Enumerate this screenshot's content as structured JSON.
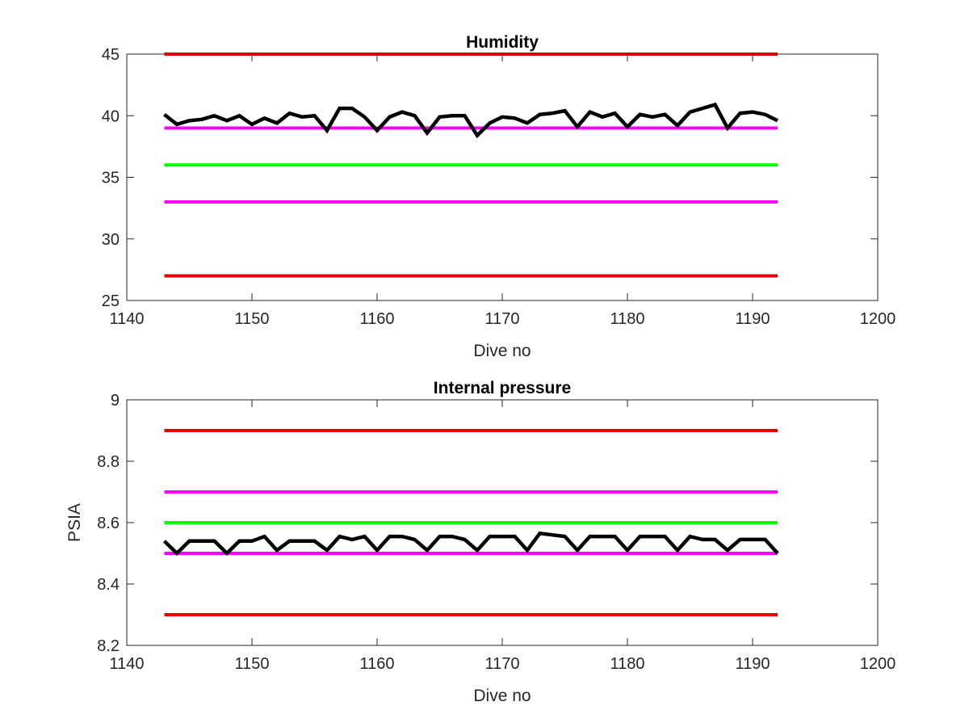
{
  "chart_data": [
    {
      "type": "line",
      "title": "Humidity",
      "xlabel": "Dive no",
      "ylabel": "",
      "xlim": [
        1140,
        1200
      ],
      "ylim": [
        25,
        45
      ],
      "xticks": [
        1140,
        1150,
        1160,
        1170,
        1180,
        1190,
        1200
      ],
      "yticks": [
        25,
        30,
        35,
        40,
        45
      ],
      "grid": false,
      "legend": "none",
      "series": [
        {
          "color": "#000000",
          "x": [
            1143,
            1144,
            1145,
            1146,
            1147,
            1148,
            1149,
            1150,
            1151,
            1152,
            1153,
            1154,
            1155,
            1156,
            1157,
            1158,
            1159,
            1160,
            1161,
            1162,
            1163,
            1164,
            1165,
            1166,
            1167,
            1168,
            1169,
            1170,
            1171,
            1172,
            1173,
            1174,
            1175,
            1176,
            1177,
            1178,
            1179,
            1180,
            1181,
            1182,
            1183,
            1184,
            1185,
            1186,
            1187,
            1188,
            1189,
            1190,
            1191,
            1192
          ],
          "values": [
            40.1,
            39.3,
            39.6,
            39.7,
            40.0,
            39.6,
            40.0,
            39.3,
            39.8,
            39.4,
            40.2,
            39.9,
            40.0,
            38.8,
            40.6,
            40.6,
            39.9,
            38.8,
            39.9,
            40.3,
            40.0,
            38.6,
            39.9,
            40.0,
            40.0,
            38.4,
            39.4,
            39.9,
            39.8,
            39.4,
            40.1,
            40.2,
            40.4,
            39.1,
            40.3,
            39.9,
            40.2,
            39.1,
            40.1,
            39.9,
            40.1,
            39.2,
            40.3,
            40.6,
            40.9,
            39.0,
            40.2,
            40.3,
            40.1,
            39.6
          ]
        },
        {
          "color": "#e00000",
          "x": [
            1143,
            1192
          ],
          "values": [
            45,
            45
          ]
        },
        {
          "color": "#ff00ff",
          "x": [
            1143,
            1192
          ],
          "values": [
            39,
            39
          ]
        },
        {
          "color": "#00ff00",
          "x": [
            1143,
            1192
          ],
          "values": [
            36,
            36
          ]
        },
        {
          "color": "#ff00ff",
          "x": [
            1143,
            1192
          ],
          "values": [
            33,
            33
          ]
        },
        {
          "color": "#e00000",
          "x": [
            1143,
            1192
          ],
          "values": [
            27,
            27
          ]
        }
      ]
    },
    {
      "type": "line",
      "title": "Internal pressure",
      "xlabel": "Dive no",
      "ylabel": "PSIA",
      "xlim": [
        1140,
        1200
      ],
      "ylim": [
        8.2,
        9
      ],
      "xticks": [
        1140,
        1150,
        1160,
        1170,
        1180,
        1190,
        1200
      ],
      "yticks": [
        8.2,
        8.4,
        8.6,
        8.8,
        9
      ],
      "grid": false,
      "legend": "none",
      "series": [
        {
          "color": "#000000",
          "x": [
            1143,
            1144,
            1145,
            1146,
            1147,
            1148,
            1149,
            1150,
            1151,
            1152,
            1153,
            1154,
            1155,
            1156,
            1157,
            1158,
            1159,
            1160,
            1161,
            1162,
            1163,
            1164,
            1165,
            1166,
            1167,
            1168,
            1169,
            1170,
            1171,
            1172,
            1173,
            1174,
            1175,
            1176,
            1177,
            1178,
            1179,
            1180,
            1181,
            1182,
            1183,
            1184,
            1185,
            1186,
            1187,
            1188,
            1189,
            1190,
            1191,
            1192
          ],
          "values": [
            8.54,
            8.5,
            8.54,
            8.54,
            8.54,
            8.5,
            8.54,
            8.54,
            8.555,
            8.51,
            8.54,
            8.54,
            8.54,
            8.51,
            8.555,
            8.545,
            8.555,
            8.51,
            8.555,
            8.555,
            8.545,
            8.51,
            8.555,
            8.555,
            8.545,
            8.51,
            8.555,
            8.555,
            8.555,
            8.51,
            8.565,
            8.56,
            8.555,
            8.51,
            8.555,
            8.555,
            8.555,
            8.51,
            8.555,
            8.555,
            8.555,
            8.51,
            8.555,
            8.545,
            8.545,
            8.51,
            8.545,
            8.545,
            8.545,
            8.5
          ]
        },
        {
          "color": "#e00000",
          "x": [
            1143,
            1192
          ],
          "values": [
            8.9,
            8.9
          ]
        },
        {
          "color": "#ff00ff",
          "x": [
            1143,
            1192
          ],
          "values": [
            8.7,
            8.7
          ]
        },
        {
          "color": "#00ff00",
          "x": [
            1143,
            1192
          ],
          "values": [
            8.6,
            8.6
          ]
        },
        {
          "color": "#ff00ff",
          "x": [
            1143,
            1192
          ],
          "values": [
            8.5,
            8.5
          ]
        },
        {
          "color": "#e00000",
          "x": [
            1143,
            1192
          ],
          "values": [
            8.3,
            8.3
          ]
        }
      ]
    }
  ]
}
